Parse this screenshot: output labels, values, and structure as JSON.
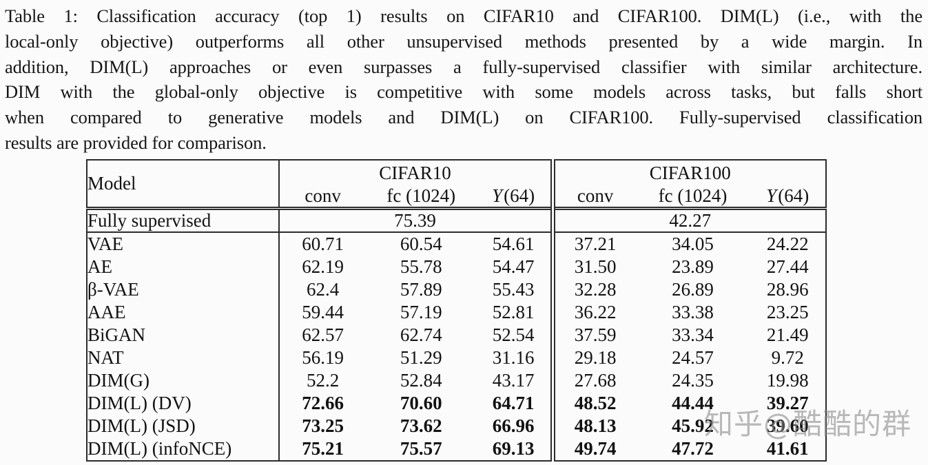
{
  "caption": {
    "lines": [
      "Table 1: Classification accuracy (top 1) results on CIFAR10 and CIFAR100. DIM(L) (i.e., with the",
      "local-only objective) outperforms all other unsupervised methods presented by a wide margin. In",
      "addition, DIM(L) approaches or even surpasses a fully-supervised classifier with similar architecture.",
      "DIM with the global-only objective is competitive with some models across tasks, but falls short",
      "when compared to generative models and DIM(L) on CIFAR100. Fully-supervised classification",
      "results are provided for comparison."
    ]
  },
  "table": {
    "header": {
      "model_label": "Model",
      "group1": "CIFAR10",
      "group2": "CIFAR100",
      "sub": {
        "conv": "conv",
        "fc": "fc (1024)",
        "y_var": "Y",
        "y_arg": "(64)"
      }
    },
    "fully_supervised": {
      "label": "Fully supervised",
      "cifar10": "75.39",
      "cifar100": "42.27"
    },
    "rows": [
      {
        "model": "VAE",
        "bold": false,
        "values": [
          "60.71",
          "60.54",
          "54.61",
          "37.21",
          "34.05",
          "24.22"
        ]
      },
      {
        "model": "AE",
        "bold": false,
        "values": [
          "62.19",
          "55.78",
          "54.47",
          "31.50",
          "23.89",
          "27.44"
        ]
      },
      {
        "model": "β-VAE",
        "bold": false,
        "values": [
          "62.4",
          "57.89",
          "55.43",
          "32.28",
          "26.89",
          "28.96"
        ]
      },
      {
        "model": "AAE",
        "bold": false,
        "values": [
          "59.44",
          "57.19",
          "52.81",
          "36.22",
          "33.38",
          "23.25"
        ]
      },
      {
        "model": "BiGAN",
        "bold": false,
        "values": [
          "62.57",
          "62.74",
          "52.54",
          "37.59",
          "33.34",
          "21.49"
        ]
      },
      {
        "model": "NAT",
        "bold": false,
        "values": [
          "56.19",
          "51.29",
          "31.16",
          "29.18",
          "24.57",
          "9.72"
        ]
      },
      {
        "model": "DIM(G)",
        "bold": false,
        "values": [
          "52.2",
          "52.84",
          "43.17",
          "27.68",
          "24.35",
          "19.98"
        ]
      },
      {
        "model": "DIM(L) (DV)",
        "bold": true,
        "values": [
          "72.66",
          "70.60",
          "64.71",
          "48.52",
          "44.44",
          "39.27"
        ]
      },
      {
        "model": "DIM(L) (JSD)",
        "bold": true,
        "values": [
          "73.25",
          "73.62",
          "66.96",
          "48.13",
          "45.92",
          "39.60"
        ]
      },
      {
        "model": "DIM(L) (infoNCE)",
        "bold": true,
        "values": [
          "75.21",
          "75.57",
          "69.13",
          "49.74",
          "47.72",
          "41.61"
        ]
      }
    ]
  },
  "watermark": {
    "text": "知乎@酷酷的群",
    "color": "rgba(140,140,140,0.6)"
  }
}
